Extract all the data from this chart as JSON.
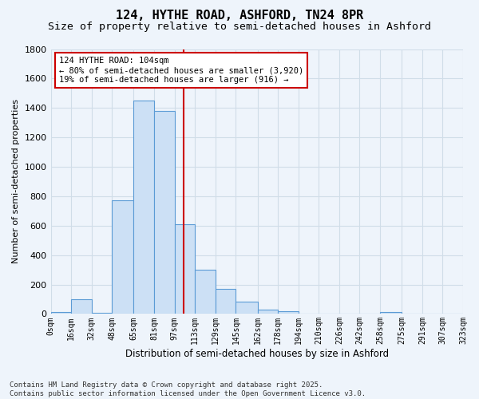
{
  "title": "124, HYTHE ROAD, ASHFORD, TN24 8PR",
  "subtitle": "Size of property relative to semi-detached houses in Ashford",
  "xlabel": "Distribution of semi-detached houses by size in Ashford",
  "ylabel": "Number of semi-detached properties",
  "bar_edges": [
    0,
    16,
    32,
    48,
    65,
    81,
    97,
    113,
    129,
    145,
    162,
    178,
    194,
    210,
    226,
    242,
    258,
    275,
    291,
    307,
    323
  ],
  "bar_heights": [
    15,
    100,
    5,
    775,
    1450,
    1380,
    610,
    300,
    170,
    85,
    30,
    18,
    0,
    0,
    0,
    0,
    13,
    0,
    0,
    0
  ],
  "bar_color": "#cce0f5",
  "bar_edge_color": "#5b9bd5",
  "grid_color": "#d0dde8",
  "vline_x": 104,
  "vline_color": "#cc0000",
  "annotation_text": "124 HYTHE ROAD: 104sqm\n← 80% of semi-detached houses are smaller (3,920)\n19% of semi-detached houses are larger (916) →",
  "annotation_box_color": "#ffffff",
  "annotation_box_edge_color": "#cc0000",
  "footnote": "Contains HM Land Registry data © Crown copyright and database right 2025.\nContains public sector information licensed under the Open Government Licence v3.0.",
  "ylim": [
    0,
    1800
  ],
  "tick_labels": [
    "0sqm",
    "16sqm",
    "32sqm",
    "48sqm",
    "65sqm",
    "81sqm",
    "97sqm",
    "113sqm",
    "129sqm",
    "145sqm",
    "162sqm",
    "178sqm",
    "194sqm",
    "210sqm",
    "226sqm",
    "242sqm",
    "258sqm",
    "275sqm",
    "291sqm",
    "307sqm",
    "323sqm"
  ],
  "bg_color": "#eef4fb",
  "title_fontsize": 11,
  "subtitle_fontsize": 9.5,
  "footnote_fontsize": 6.5
}
